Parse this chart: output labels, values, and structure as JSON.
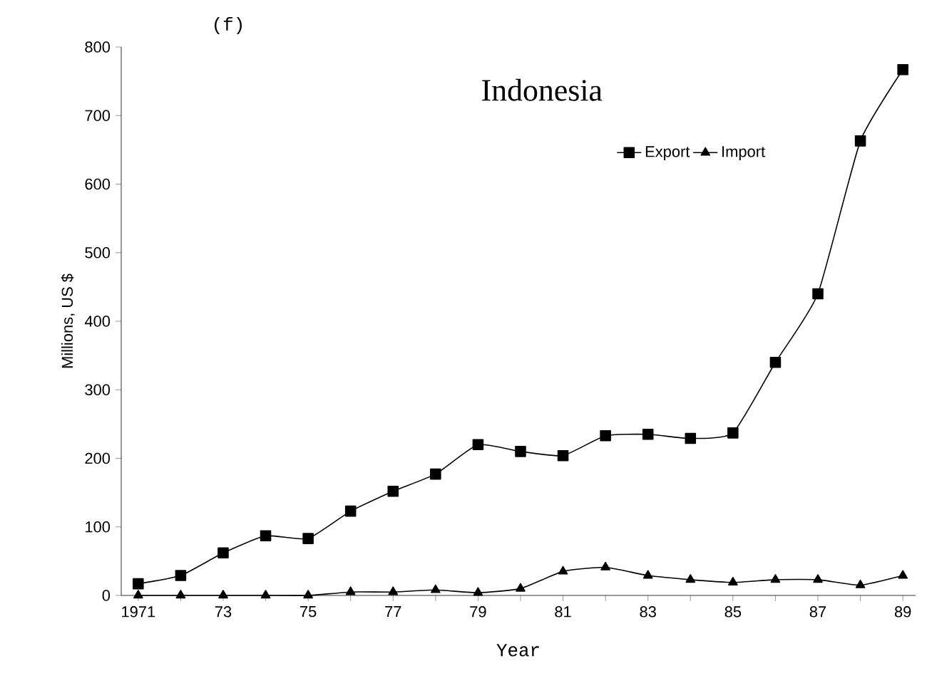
{
  "chart_data": {
    "type": "line",
    "title": "Indonesia",
    "xlabel": "Year",
    "ylabel": "Millions,  US $",
    "annotations": [
      "(f)"
    ],
    "x": [
      1971,
      1972,
      1973,
      1974,
      1975,
      1976,
      1977,
      1978,
      1979,
      1980,
      1981,
      1982,
      1983,
      1984,
      1985,
      1986,
      1987,
      1988,
      1989
    ],
    "series": [
      {
        "name": "Export",
        "color": "#000000",
        "marker": "square",
        "values": [
          17,
          29,
          62,
          87,
          83,
          123,
          152,
          177,
          220,
          210,
          204,
          233,
          235,
          229,
          237,
          340,
          440,
          663,
          767
        ]
      },
      {
        "name": "Import",
        "color": "#000000",
        "marker": "triangle",
        "values": [
          0,
          0,
          0,
          0,
          0,
          5,
          5,
          8,
          4,
          10,
          35,
          41,
          29,
          23,
          19,
          23,
          23,
          15,
          29
        ]
      }
    ],
    "xlim": [
      1970.6,
      1989.3
    ],
    "ylim": [
      0,
      800
    ],
    "xticks": [
      {
        "value": 1971,
        "label": "1971"
      },
      {
        "value": 1972,
        "label": null
      },
      {
        "value": 1973,
        "label": "73"
      },
      {
        "value": 1974,
        "label": null
      },
      {
        "value": 1975,
        "label": "75"
      },
      {
        "value": 1976,
        "label": null
      },
      {
        "value": 1977,
        "label": "77"
      },
      {
        "value": 1978,
        "label": null
      },
      {
        "value": 1979,
        "label": "79"
      },
      {
        "value": 1980,
        "label": null
      },
      {
        "value": 1981,
        "label": "81"
      },
      {
        "value": 1982,
        "label": null
      },
      {
        "value": 1983,
        "label": "83"
      },
      {
        "value": 1984,
        "label": null
      },
      {
        "value": 1985,
        "label": "85"
      },
      {
        "value": 1986,
        "label": null
      },
      {
        "value": 1987,
        "label": "87"
      },
      {
        "value": 1988,
        "label": null
      },
      {
        "value": 1989,
        "label": "89"
      }
    ],
    "yticks": [
      0,
      100,
      200,
      300,
      400,
      500,
      600,
      700,
      800
    ],
    "legend": "top right",
    "grid": false,
    "line_style": "solid"
  }
}
